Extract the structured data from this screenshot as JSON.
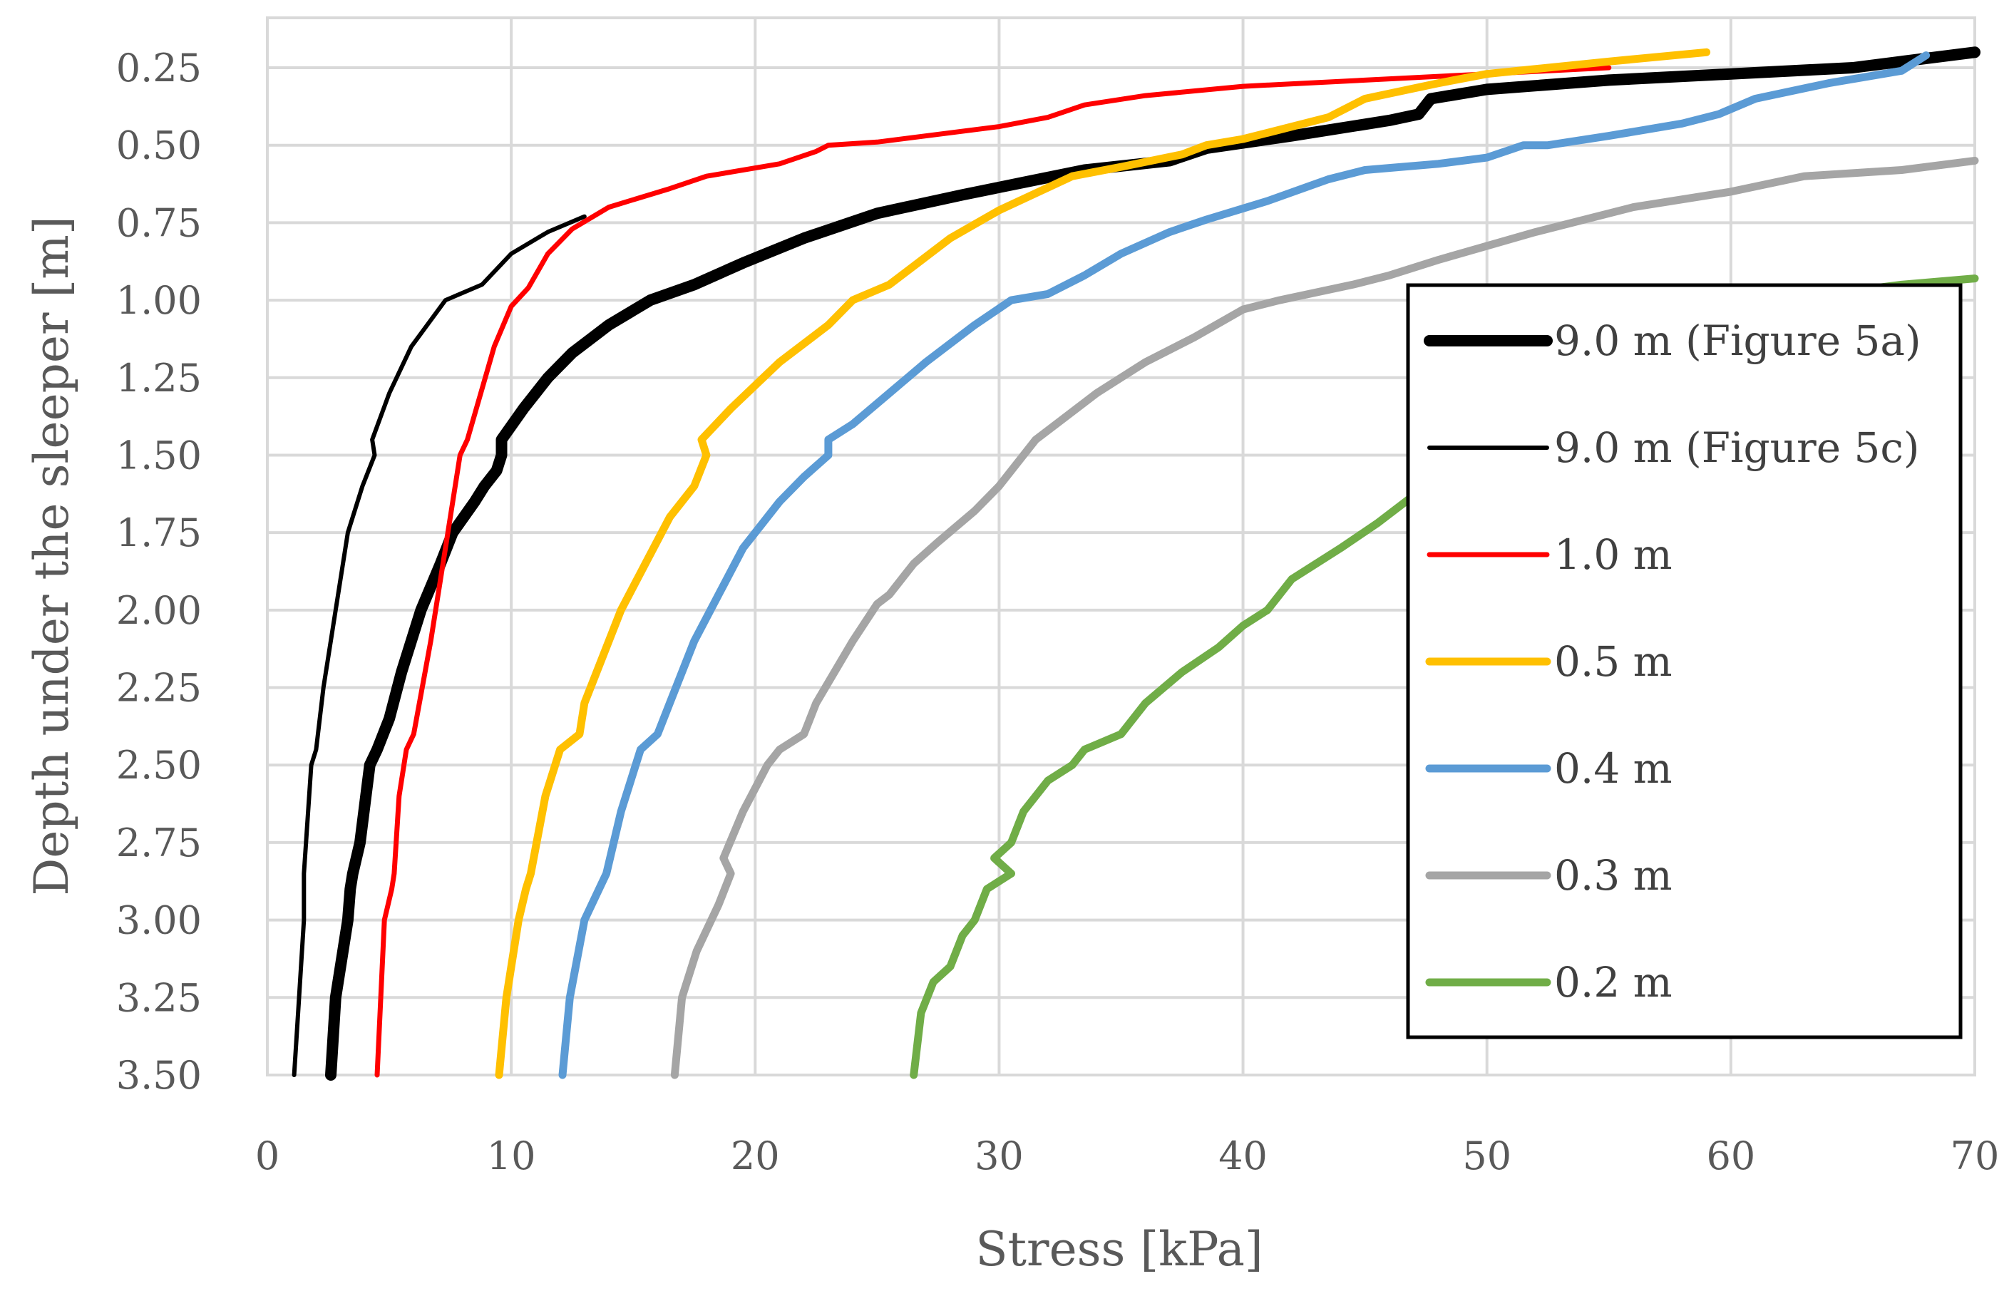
{
  "chart_data": {
    "type": "line",
    "title": "",
    "xlabel": "Stress [kPa]",
    "ylabel": "Depth under the sleeper [m]",
    "xlim": [
      0,
      70
    ],
    "ylim": [
      0.125,
      3.5
    ],
    "y_inverted": true,
    "grid": true,
    "legend_position": "right",
    "x_ticks": [
      "0",
      "10",
      "20",
      "30",
      "40",
      "50",
      "60",
      "70"
    ],
    "y_ticks": [
      "0.25",
      "0.50",
      "0.75",
      "1.00",
      "1.25",
      "1.50",
      "1.75",
      "2.00",
      "2.25",
      "2.50",
      "2.75",
      "3.00",
      "3.25",
      "3.50"
    ],
    "series": [
      {
        "name": "9.0 m (Figure 5a)",
        "color": "#000000",
        "points": [
          [
            2.6,
            3.5
          ],
          [
            2.8,
            3.25
          ],
          [
            3.3,
            3.0
          ],
          [
            3.4,
            2.9
          ],
          [
            3.5,
            2.85
          ],
          [
            3.8,
            2.75
          ],
          [
            4.2,
            2.5
          ],
          [
            4.5,
            2.45
          ],
          [
            5.0,
            2.35
          ],
          [
            5.5,
            2.2
          ],
          [
            6.3,
            2.0
          ],
          [
            7.1,
            1.85
          ],
          [
            7.6,
            1.75
          ],
          [
            8.5,
            1.65
          ],
          [
            8.9,
            1.6
          ],
          [
            9.4,
            1.55
          ],
          [
            9.6,
            1.5
          ],
          [
            9.6,
            1.45
          ],
          [
            10.5,
            1.35
          ],
          [
            11.5,
            1.25
          ],
          [
            12.5,
            1.17
          ],
          [
            14.0,
            1.08
          ],
          [
            15.7,
            1.0
          ],
          [
            17.5,
            0.95
          ],
          [
            19.5,
            0.88
          ],
          [
            22.0,
            0.8
          ],
          [
            25.0,
            0.72
          ],
          [
            28.5,
            0.66
          ],
          [
            31.0,
            0.62
          ],
          [
            33.5,
            0.58
          ],
          [
            37.0,
            0.55
          ],
          [
            38.5,
            0.51
          ],
          [
            42.0,
            0.47
          ],
          [
            46.0,
            0.42
          ],
          [
            47.2,
            0.4
          ],
          [
            47.7,
            0.35
          ],
          [
            50.0,
            0.32
          ],
          [
            55.0,
            0.29
          ],
          [
            60.0,
            0.27
          ],
          [
            65.0,
            0.25
          ],
          [
            67.0,
            0.23
          ],
          [
            70.0,
            0.2
          ]
        ]
      },
      {
        "name": "9.0 m (Figure 5c)",
        "color": "#000000",
        "points": [
          [
            1.1,
            3.5
          ],
          [
            1.3,
            3.25
          ],
          [
            1.5,
            3.0
          ],
          [
            1.5,
            2.85
          ],
          [
            1.8,
            2.5
          ],
          [
            2.0,
            2.45
          ],
          [
            2.3,
            2.25
          ],
          [
            2.8,
            2.0
          ],
          [
            3.3,
            1.75
          ],
          [
            3.9,
            1.6
          ],
          [
            4.4,
            1.5
          ],
          [
            4.3,
            1.45
          ],
          [
            5.0,
            1.3
          ],
          [
            5.9,
            1.15
          ],
          [
            7.3,
            1.0
          ],
          [
            8.8,
            0.95
          ],
          [
            10.0,
            0.85
          ],
          [
            11.5,
            0.78
          ],
          [
            13.0,
            0.73
          ]
        ]
      },
      {
        "name": "1.0 m",
        "color": "#ff0000",
        "points": [
          [
            4.5,
            3.5
          ],
          [
            4.8,
            3.0
          ],
          [
            5.1,
            2.9
          ],
          [
            5.2,
            2.85
          ],
          [
            5.4,
            2.6
          ],
          [
            5.7,
            2.45
          ],
          [
            6.0,
            2.4
          ],
          [
            6.7,
            2.1
          ],
          [
            7.3,
            1.8
          ],
          [
            7.9,
            1.5
          ],
          [
            8.2,
            1.45
          ],
          [
            9.3,
            1.15
          ],
          [
            10.0,
            1.02
          ],
          [
            10.7,
            0.96
          ],
          [
            11.5,
            0.85
          ],
          [
            12.5,
            0.77
          ],
          [
            14.0,
            0.7
          ],
          [
            16.5,
            0.64
          ],
          [
            18.0,
            0.6
          ],
          [
            21.0,
            0.56
          ],
          [
            22.5,
            0.52
          ],
          [
            23.0,
            0.5
          ],
          [
            25.0,
            0.49
          ],
          [
            30.0,
            0.44
          ],
          [
            32.0,
            0.41
          ],
          [
            33.5,
            0.37
          ],
          [
            36.0,
            0.34
          ],
          [
            40.0,
            0.31
          ],
          [
            45.0,
            0.29
          ],
          [
            50.0,
            0.27
          ],
          [
            55.0,
            0.25
          ]
        ]
      },
      {
        "name": "0.5 m",
        "color": "#ffc000",
        "points": [
          [
            9.5,
            3.5
          ],
          [
            9.8,
            3.25
          ],
          [
            10.3,
            3.0
          ],
          [
            10.6,
            2.9
          ],
          [
            10.8,
            2.85
          ],
          [
            11.4,
            2.6
          ],
          [
            12.0,
            2.45
          ],
          [
            12.8,
            2.4
          ],
          [
            13.0,
            2.3
          ],
          [
            14.5,
            2.0
          ],
          [
            15.5,
            1.85
          ],
          [
            16.5,
            1.7
          ],
          [
            17.5,
            1.6
          ],
          [
            18.0,
            1.5
          ],
          [
            17.8,
            1.45
          ],
          [
            19.0,
            1.35
          ],
          [
            21.0,
            1.2
          ],
          [
            23.0,
            1.08
          ],
          [
            24.0,
            1.0
          ],
          [
            25.5,
            0.95
          ],
          [
            28.0,
            0.8
          ],
          [
            30.0,
            0.71
          ],
          [
            33.0,
            0.6
          ],
          [
            35.0,
            0.57
          ],
          [
            37.5,
            0.53
          ],
          [
            38.5,
            0.5
          ],
          [
            40.0,
            0.48
          ],
          [
            43.5,
            0.41
          ],
          [
            45.0,
            0.35
          ],
          [
            48.0,
            0.3
          ],
          [
            50.0,
            0.27
          ],
          [
            55.0,
            0.23
          ],
          [
            59.0,
            0.2
          ]
        ]
      },
      {
        "name": "0.4 m",
        "color": "#5b9bd5",
        "points": [
          [
            12.1,
            3.5
          ],
          [
            12.4,
            3.25
          ],
          [
            13.0,
            3.0
          ],
          [
            13.6,
            2.9
          ],
          [
            13.9,
            2.85
          ],
          [
            14.5,
            2.65
          ],
          [
            15.3,
            2.45
          ],
          [
            16.0,
            2.4
          ],
          [
            16.5,
            2.3
          ],
          [
            17.5,
            2.1
          ],
          [
            18.5,
            1.95
          ],
          [
            19.5,
            1.8
          ],
          [
            21.0,
            1.65
          ],
          [
            22.0,
            1.57
          ],
          [
            23.0,
            1.5
          ],
          [
            23.0,
            1.45
          ],
          [
            24.0,
            1.4
          ],
          [
            25.5,
            1.3
          ],
          [
            27.0,
            1.2
          ],
          [
            29.0,
            1.08
          ],
          [
            30.5,
            1.0
          ],
          [
            32.0,
            0.98
          ],
          [
            33.5,
            0.92
          ],
          [
            35.0,
            0.85
          ],
          [
            37.0,
            0.78
          ],
          [
            38.5,
            0.74
          ],
          [
            41.0,
            0.68
          ],
          [
            43.5,
            0.61
          ],
          [
            45.0,
            0.58
          ],
          [
            48.0,
            0.56
          ],
          [
            50.0,
            0.54
          ],
          [
            51.5,
            0.5
          ],
          [
            52.5,
            0.5
          ],
          [
            55.0,
            0.47
          ],
          [
            58.0,
            0.43
          ],
          [
            59.5,
            0.4
          ],
          [
            61.0,
            0.35
          ],
          [
            64.0,
            0.3
          ],
          [
            67.0,
            0.26
          ],
          [
            68.0,
            0.21
          ]
        ]
      },
      {
        "name": "0.3 m",
        "color": "#a5a5a5",
        "points": [
          [
            16.7,
            3.5
          ],
          [
            17.0,
            3.25
          ],
          [
            17.6,
            3.1
          ],
          [
            18.5,
            2.95
          ],
          [
            19.0,
            2.85
          ],
          [
            18.7,
            2.8
          ],
          [
            19.5,
            2.65
          ],
          [
            20.5,
            2.5
          ],
          [
            21.0,
            2.45
          ],
          [
            22.0,
            2.4
          ],
          [
            22.5,
            2.3
          ],
          [
            24.0,
            2.1
          ],
          [
            25.0,
            1.98
          ],
          [
            25.5,
            1.95
          ],
          [
            26.5,
            1.85
          ],
          [
            27.5,
            1.78
          ],
          [
            29.0,
            1.68
          ],
          [
            30.0,
            1.6
          ],
          [
            31.0,
            1.5
          ],
          [
            31.5,
            1.45
          ],
          [
            32.0,
            1.42
          ],
          [
            34.0,
            1.3
          ],
          [
            36.0,
            1.2
          ],
          [
            38.0,
            1.12
          ],
          [
            40.0,
            1.03
          ],
          [
            41.5,
            1.0
          ],
          [
            44.5,
            0.95
          ],
          [
            46.0,
            0.92
          ],
          [
            48.0,
            0.87
          ],
          [
            52.0,
            0.78
          ],
          [
            56.0,
            0.7
          ],
          [
            60.0,
            0.65
          ],
          [
            63.0,
            0.6
          ],
          [
            67.0,
            0.58
          ],
          [
            70.0,
            0.55
          ]
        ]
      },
      {
        "name": "0.2 m",
        "color": "#70ad47",
        "points": [
          [
            26.5,
            3.5
          ],
          [
            26.8,
            3.3
          ],
          [
            27.3,
            3.2
          ],
          [
            28.0,
            3.15
          ],
          [
            28.5,
            3.05
          ],
          [
            29.0,
            3.0
          ],
          [
            29.5,
            2.9
          ],
          [
            30.5,
            2.85
          ],
          [
            29.8,
            2.8
          ],
          [
            30.5,
            2.75
          ],
          [
            31.0,
            2.65
          ],
          [
            32.0,
            2.55
          ],
          [
            33.0,
            2.5
          ],
          [
            33.5,
            2.45
          ],
          [
            35.0,
            2.4
          ],
          [
            36.0,
            2.3
          ],
          [
            37.5,
            2.2
          ],
          [
            39.0,
            2.12
          ],
          [
            40.0,
            2.05
          ],
          [
            41.0,
            2.0
          ],
          [
            42.0,
            1.9
          ],
          [
            44.0,
            1.8
          ],
          [
            45.5,
            1.72
          ],
          [
            47.5,
            1.6
          ],
          [
            49.5,
            1.5
          ],
          [
            52.0,
            1.35
          ],
          [
            56.0,
            1.2
          ],
          [
            60.0,
            1.07
          ],
          [
            63.0,
            0.99
          ],
          [
            67.0,
            0.95
          ],
          [
            70.0,
            0.93
          ]
        ]
      }
    ]
  }
}
